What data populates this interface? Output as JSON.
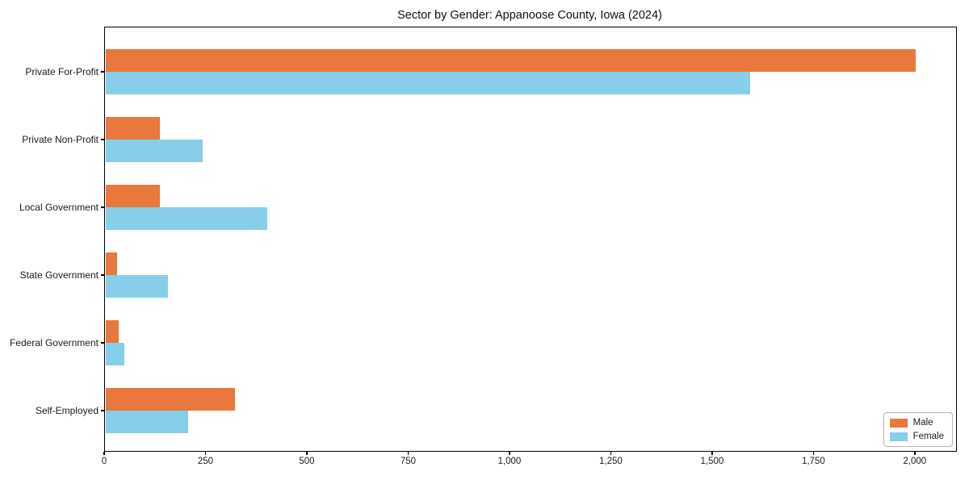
{
  "chart_data": {
    "type": "bar",
    "orientation": "horizontal",
    "title": "Sector by Gender: Appanoose County, Iowa (2024)",
    "categories": [
      "Private For-Profit",
      "Private Non-Profit",
      "Local Government",
      "State Government",
      "Federal Government",
      "Self-Employed"
    ],
    "series": [
      {
        "name": "Male",
        "color": "#e8783c",
        "values": [
          2000,
          135,
          135,
          28,
          32,
          320
        ]
      },
      {
        "name": "Female",
        "color": "#87ceeb",
        "values": [
          1590,
          240,
          400,
          155,
          46,
          205
        ]
      }
    ],
    "xlabel": "",
    "ylabel": "",
    "xlim": [
      0,
      2100
    ],
    "x_ticks": {
      "values": [
        0,
        250,
        500,
        750,
        1000,
        1250,
        1500,
        1750,
        2000
      ],
      "labels": [
        "0",
        "250",
        "500",
        "750",
        "1,000",
        "1,250",
        "1,500",
        "1,750",
        "2,000"
      ]
    },
    "grid": false,
    "legend_position": "lower right"
  }
}
